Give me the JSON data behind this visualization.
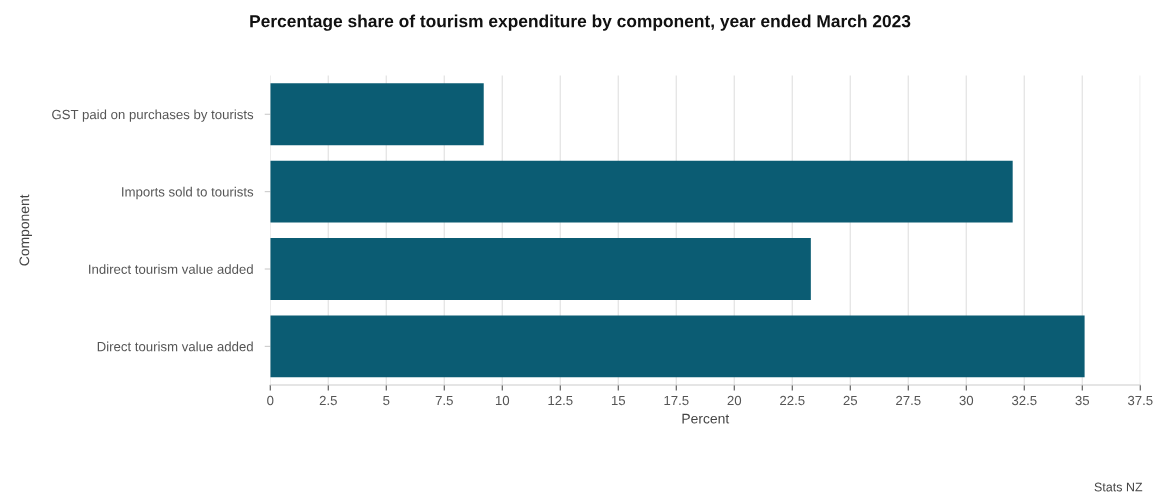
{
  "chart_data": {
    "type": "bar",
    "orientation": "horizontal",
    "title": "Percentage share of tourism expenditure by component, year ended March 2023",
    "xlabel": "Percent",
    "ylabel": "Component",
    "categories": [
      "GST paid on purchases by tourists",
      "Imports sold to tourists",
      "Indirect tourism value added",
      "Direct tourism value added"
    ],
    "values": [
      9.2,
      32.0,
      23.3,
      35.1
    ],
    "color": "#0b5c73",
    "xlim": [
      0,
      37.5
    ],
    "xticks": [
      0,
      2.5,
      5,
      7.5,
      10,
      12.5,
      15,
      17.5,
      20,
      22.5,
      25,
      27.5,
      30,
      32.5,
      35,
      37.5
    ],
    "grid": "x",
    "annotations": [
      "Stats NZ"
    ]
  }
}
